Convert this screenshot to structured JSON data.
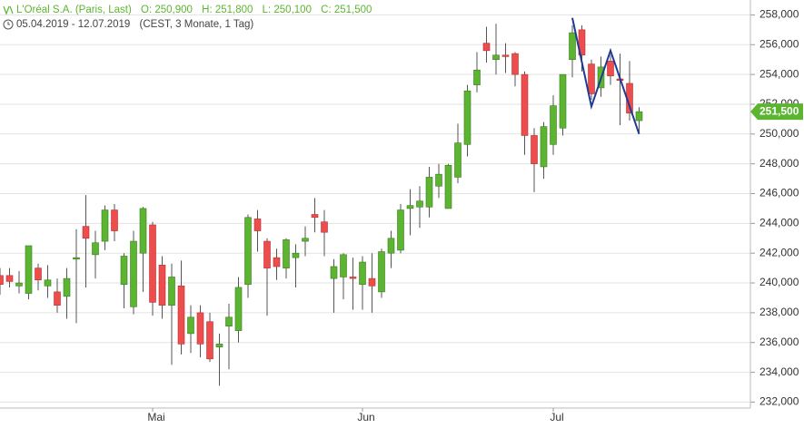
{
  "header": {
    "title": "L'Oréal S.A. (Paris, Last)",
    "quote": [
      "O: 250,900",
      "H: 251,800",
      "L: 250,100",
      "C: 251,500"
    ],
    "range": "05.04.2019 - 12.07.2019",
    "details": "(CEST, 3 Monate, 1 Tag)"
  },
  "chart_data": {
    "type": "candlestick",
    "categories": [
      null,
      null,
      null,
      null,
      null,
      null,
      null,
      null,
      null,
      null,
      null,
      null,
      null,
      null,
      null,
      null,
      "Mai",
      null,
      null,
      null,
      null,
      null,
      null,
      null,
      null,
      null,
      null,
      null,
      null,
      null,
      null,
      null,
      null,
      null,
      null,
      null,
      null,
      null,
      "Jun",
      null,
      null,
      null,
      null,
      null,
      null,
      null,
      null,
      null,
      null,
      null,
      null,
      null,
      null,
      null,
      null,
      null,
      null,
      null,
      "Jul",
      null,
      null,
      null,
      null,
      null,
      null,
      null,
      null,
      null
    ],
    "open": [
      240.5,
      240.5,
      239.8,
      239.3,
      241.0,
      239.8,
      239.4,
      239.1,
      241.6,
      243.8,
      241.9,
      242.8,
      244.9,
      239.9,
      238.4,
      242.0,
      243.9,
      241.2,
      238.5,
      239.8,
      236.6,
      238.0,
      237.4,
      235.7,
      237.1,
      236.8,
      239.9,
      244.3,
      242.8,
      241.7,
      241.0,
      241.7,
      242.8,
      244.6,
      244.1,
      240.3,
      240.4,
      240.4,
      239.9,
      240.3,
      239.4,
      242.0,
      242.2,
      245.0,
      245.1,
      245.1,
      246.5,
      245.0,
      247.1,
      249.3,
      253.3,
      256.1,
      255.0,
      255.3,
      255.4,
      254.0,
      249.9,
      247.8,
      249.3,
      250.4,
      255.0,
      257.0,
      254.7,
      253.1,
      254.9,
      253.7,
      253.4,
      250.9
    ],
    "high": [
      241.0,
      241.0,
      240.8,
      242.5,
      241.3,
      241.2,
      240.3,
      241.0,
      243.6,
      245.9,
      243.5,
      245.2,
      245.3,
      242.0,
      243.5,
      245.1,
      244.1,
      241.8,
      241.3,
      241.5,
      238.5,
      238.5,
      238.0,
      236.6,
      238.6,
      240.4,
      244.6,
      244.9,
      243.0,
      242.3,
      243.0,
      242.6,
      243.8,
      245.7,
      244.9,
      241.6,
      242.0,
      241.7,
      241.8,
      242.0,
      242.3,
      243.5,
      245.3,
      246.3,
      246.5,
      247.8,
      248.0,
      248.0,
      250.7,
      253.3,
      255.5,
      257.2,
      257.4,
      256.1,
      255.5,
      254.2,
      250.4,
      250.8,
      252.6,
      254.0,
      257.3,
      257.3,
      255.0,
      255.2,
      255.3,
      255.4,
      254.9,
      251.8
    ],
    "low": [
      239.2,
      239.7,
      239.3,
      238.9,
      239.5,
      239.0,
      238.0,
      237.6,
      237.3,
      239.7,
      240.3,
      242.2,
      242.8,
      238.3,
      237.9,
      239.4,
      237.8,
      237.6,
      234.5,
      235.2,
      235.3,
      235.0,
      234.7,
      233.1,
      234.2,
      236.0,
      239.0,
      242.1,
      237.8,
      240.2,
      240.3,
      239.7,
      241.8,
      243.4,
      241.8,
      238.0,
      238.9,
      238.2,
      238.2,
      238.0,
      239.0,
      241.0,
      242.0,
      243.2,
      243.7,
      244.4,
      245.7,
      245.0,
      246.7,
      248.5,
      252.8,
      254.8,
      254.0,
      254.1,
      253.2,
      248.6,
      246.1,
      247.0,
      248.6,
      249.9,
      253.8,
      254.2,
      252.3,
      252.5,
      253.3,
      250.6,
      250.9,
      250.1
    ],
    "close": [
      239.9,
      240.1,
      240.0,
      242.5,
      240.2,
      240.2,
      238.5,
      240.3,
      241.7,
      243.0,
      242.7,
      244.9,
      243.5,
      241.8,
      242.8,
      245.0,
      238.7,
      238.5,
      240.4,
      235.9,
      237.7,
      235.9,
      234.9,
      235.9,
      237.7,
      239.7,
      244.4,
      243.5,
      241.0,
      241.1,
      242.9,
      242.0,
      243.0,
      244.4,
      243.4,
      241.1,
      241.9,
      240.3,
      241.4,
      239.8,
      242.1,
      243.0,
      244.9,
      245.2,
      245.5,
      247.1,
      247.3,
      247.9,
      249.4,
      252.9,
      254.3,
      255.6,
      255.3,
      255.2,
      254.0,
      249.9,
      248.0,
      250.5,
      251.9,
      254.0,
      256.8,
      255.3,
      252.7,
      254.5,
      253.9,
      253.6,
      251.4,
      251.5
    ],
    "up_color": "#5cb531",
    "down_color": "#ee4d4d",
    "ylim": [
      231.6,
      259
    ],
    "yticks": [
      {
        "value": 232,
        "label": "232,000"
      },
      {
        "value": 234,
        "label": "234,000"
      },
      {
        "value": 236,
        "label": "236,000"
      },
      {
        "value": 238,
        "label": "238,000"
      },
      {
        "value": 240,
        "label": "240,000"
      },
      {
        "value": 242,
        "label": "242,000"
      },
      {
        "value": 244,
        "label": "244,000"
      },
      {
        "value": 246,
        "label": "246,000"
      },
      {
        "value": 248,
        "label": "248,000"
      },
      {
        "value": 250,
        "label": "250,000"
      },
      {
        "value": 252,
        "label": "252,000"
      },
      {
        "value": 254,
        "label": "254,000"
      },
      {
        "value": 256,
        "label": "256,000"
      },
      {
        "value": 258,
        "label": "258,000"
      }
    ],
    "grid": true,
    "last_price": {
      "value": 251.5,
      "label": "251,500"
    },
    "drawing": {
      "x": [
        60,
        62,
        64,
        67
      ],
      "values": [
        257.8,
        251.85,
        255.6,
        250.0
      ],
      "color": "#1f3a93"
    }
  }
}
